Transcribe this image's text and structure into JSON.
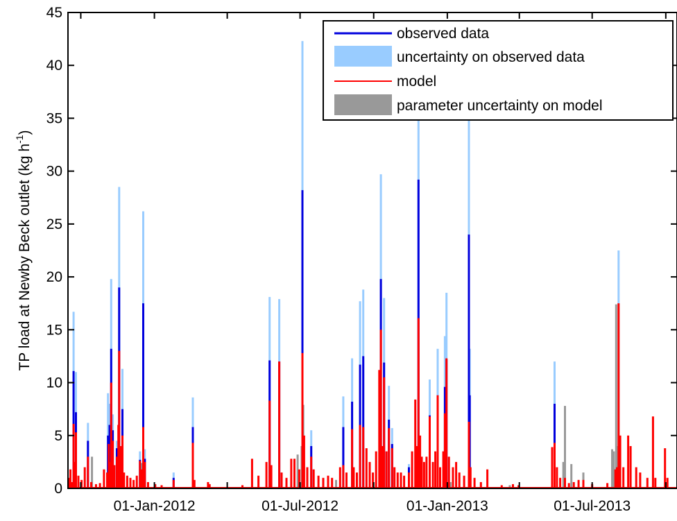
{
  "chart_data": {
    "type": "bar",
    "title": "",
    "ylabel": "TP load at Newby Beck outlet (kg h",
    "ylabel_sup": "-1",
    "ylabel_close": ")",
    "ylim": [
      0,
      45
    ],
    "yticks": [
      0,
      5,
      10,
      15,
      20,
      25,
      30,
      35,
      40,
      45
    ],
    "xlim": [
      "2011-09-15",
      "2013-10-15"
    ],
    "xticks": [
      {
        "date": "2011-10-01",
        "label": ""
      },
      {
        "date": "2012-01-01",
        "label": "01-Jan-2012"
      },
      {
        "date": "2012-04-01",
        "label": ""
      },
      {
        "date": "2012-07-01",
        "label": "01-Jul-2012"
      },
      {
        "date": "2012-10-01",
        "label": ""
      },
      {
        "date": "2013-01-01",
        "label": "01-Jan-2013"
      },
      {
        "date": "2013-04-01",
        "label": ""
      },
      {
        "date": "2013-07-01",
        "label": "01-Jul-2013"
      },
      {
        "date": "2013-10-01",
        "label": ""
      }
    ],
    "grid": false,
    "legend_position": "top-right",
    "colors": {
      "observed": "#0000dd",
      "observed_uncertainty": "#99ccff",
      "model": "#ff0000",
      "model_uncertainty": "#999999"
    },
    "series": [
      {
        "name": "observed data",
        "style": "line",
        "color": "#0000dd",
        "points": [
          [
            "2011-09-22",
            11.1
          ],
          [
            "2011-09-25",
            7.2
          ],
          [
            "2011-10-10",
            4.5
          ],
          [
            "2011-11-04",
            5.0
          ],
          [
            "2011-11-06",
            6.0
          ],
          [
            "2011-11-08",
            13.2
          ],
          [
            "2011-11-10",
            5.5
          ],
          [
            "2011-11-15",
            3.8
          ],
          [
            "2011-11-18",
            19.0
          ],
          [
            "2011-11-22",
            7.5
          ],
          [
            "2011-12-14",
            2.7
          ],
          [
            "2011-12-18",
            17.5
          ],
          [
            "2011-12-20",
            2.8
          ],
          [
            "2012-01-25",
            1.0
          ],
          [
            "2012-02-18",
            5.8
          ],
          [
            "2012-05-24",
            12.1
          ],
          [
            "2012-06-05",
            12.0
          ],
          [
            "2012-07-04",
            28.2
          ],
          [
            "2012-07-15",
            4.0
          ],
          [
            "2012-08-24",
            5.8
          ],
          [
            "2012-09-04",
            8.2
          ],
          [
            "2012-09-14",
            11.7
          ],
          [
            "2012-09-18",
            12.5
          ],
          [
            "2012-10-10",
            19.8
          ],
          [
            "2012-10-14",
            11.9
          ],
          [
            "2012-10-20",
            6.5
          ],
          [
            "2012-10-24",
            4.2
          ],
          [
            "2012-11-14",
            2.0
          ],
          [
            "2012-11-26",
            29.2
          ],
          [
            "2012-12-10",
            6.9
          ],
          [
            "2012-12-20",
            8.8
          ],
          [
            "2012-12-29",
            9.6
          ],
          [
            "2012-12-31",
            12.2
          ],
          [
            "2013-01-28",
            24.0
          ],
          [
            "2013-01-29",
            8.8
          ],
          [
            "2013-05-15",
            8.0
          ]
        ]
      },
      {
        "name": "uncertainty on observed data",
        "style": "bar",
        "color": "#99ccff",
        "points": [
          [
            "2011-09-22",
            16.7
          ],
          [
            "2011-09-25",
            11.0
          ],
          [
            "2011-10-10",
            6.2
          ],
          [
            "2011-11-04",
            9.0
          ],
          [
            "2011-11-06",
            8.0
          ],
          [
            "2011-11-08",
            19.8
          ],
          [
            "2011-11-10",
            7.0
          ],
          [
            "2011-11-15",
            4.5
          ],
          [
            "2011-11-18",
            28.5
          ],
          [
            "2011-11-22",
            11.3
          ],
          [
            "2011-12-14",
            3.5
          ],
          [
            "2011-12-18",
            26.2
          ],
          [
            "2011-12-20",
            3.7
          ],
          [
            "2012-01-25",
            1.5
          ],
          [
            "2012-02-18",
            8.6
          ],
          [
            "2012-05-24",
            18.1
          ],
          [
            "2012-06-05",
            17.9
          ],
          [
            "2012-07-04",
            42.3
          ],
          [
            "2012-07-15",
            5.5
          ],
          [
            "2012-08-24",
            8.7
          ],
          [
            "2012-09-04",
            12.3
          ],
          [
            "2012-09-14",
            17.7
          ],
          [
            "2012-09-18",
            18.8
          ],
          [
            "2012-10-10",
            29.7
          ],
          [
            "2012-10-14",
            18.0
          ],
          [
            "2012-10-20",
            9.7
          ],
          [
            "2012-10-24",
            5.7
          ],
          [
            "2012-11-14",
            2.3
          ],
          [
            "2012-11-26",
            40.0
          ],
          [
            "2012-12-10",
            10.3
          ],
          [
            "2012-12-20",
            13.2
          ],
          [
            "2012-12-29",
            14.4
          ],
          [
            "2012-12-31",
            18.5
          ],
          [
            "2013-01-28",
            40.0
          ],
          [
            "2013-01-29",
            13.2
          ],
          [
            "2013-05-15",
            12.0
          ],
          [
            "2013-08-03",
            22.5
          ]
        ]
      },
      {
        "name": "model",
        "style": "line",
        "color": "#ff0000",
        "points": [
          [
            "2011-09-16",
            1.0
          ],
          [
            "2011-09-18",
            1.8
          ],
          [
            "2011-09-20",
            0.6
          ],
          [
            "2011-09-22",
            6.1
          ],
          [
            "2011-09-24",
            2.5
          ],
          [
            "2011-09-25",
            5.3
          ],
          [
            "2011-09-28",
            1.2
          ],
          [
            "2011-10-02",
            0.8
          ],
          [
            "2011-10-06",
            2.0
          ],
          [
            "2011-10-10",
            3.0
          ],
          [
            "2011-10-14",
            0.6
          ],
          [
            "2011-10-20",
            0.4
          ],
          [
            "2011-10-25",
            0.5
          ],
          [
            "2011-10-30",
            1.8
          ],
          [
            "2011-11-03",
            1.5
          ],
          [
            "2011-11-05",
            4.2
          ],
          [
            "2011-11-07",
            2.5
          ],
          [
            "2011-11-08",
            10.0
          ],
          [
            "2011-11-10",
            4.5
          ],
          [
            "2011-11-12",
            2.2
          ],
          [
            "2011-11-15",
            3.0
          ],
          [
            "2011-11-17",
            6.0
          ],
          [
            "2011-11-18",
            13.0
          ],
          [
            "2011-11-20",
            4.0
          ],
          [
            "2011-11-22",
            5.0
          ],
          [
            "2011-11-24",
            1.5
          ],
          [
            "2011-11-28",
            1.2
          ],
          [
            "2011-12-02",
            1.0
          ],
          [
            "2011-12-06",
            0.8
          ],
          [
            "2011-12-10",
            1.2
          ],
          [
            "2011-12-14",
            2.6
          ],
          [
            "2011-12-16",
            1.8
          ],
          [
            "2011-12-18",
            5.8
          ],
          [
            "2011-12-20",
            2.5
          ],
          [
            "2011-12-24",
            0.6
          ],
          [
            "2012-01-02",
            0.4
          ],
          [
            "2012-01-10",
            0.3
          ],
          [
            "2012-01-25",
            0.8
          ],
          [
            "2012-02-18",
            4.3
          ],
          [
            "2012-02-20",
            0.8
          ],
          [
            "2012-03-08",
            0.6
          ],
          [
            "2012-03-10",
            0.4
          ],
          [
            "2012-04-20",
            0.3
          ],
          [
            "2012-05-02",
            2.8
          ],
          [
            "2012-05-10",
            1.2
          ],
          [
            "2012-05-20",
            2.5
          ],
          [
            "2012-05-24",
            8.3
          ],
          [
            "2012-05-26",
            2.2
          ],
          [
            "2012-06-05",
            12.0
          ],
          [
            "2012-06-08",
            1.5
          ],
          [
            "2012-06-14",
            1.0
          ],
          [
            "2012-06-20",
            2.8
          ],
          [
            "2012-06-24",
            2.8
          ],
          [
            "2012-06-30",
            1.8
          ],
          [
            "2012-07-04",
            12.8
          ],
          [
            "2012-07-06",
            5.0
          ],
          [
            "2012-07-10",
            2.0
          ],
          [
            "2012-07-15",
            3.0
          ],
          [
            "2012-07-18",
            1.8
          ],
          [
            "2012-07-24",
            1.2
          ],
          [
            "2012-07-30",
            1.0
          ],
          [
            "2012-08-05",
            1.2
          ],
          [
            "2012-08-10",
            1.0
          ],
          [
            "2012-08-20",
            2.0
          ],
          [
            "2012-08-24",
            2.2
          ],
          [
            "2012-08-28",
            1.5
          ],
          [
            "2012-09-04",
            5.6
          ],
          [
            "2012-09-06",
            2.0
          ],
          [
            "2012-09-10",
            1.5
          ],
          [
            "2012-09-14",
            6.0
          ],
          [
            "2012-09-18",
            5.8
          ],
          [
            "2012-09-22",
            3.8
          ],
          [
            "2012-09-26",
            2.5
          ],
          [
            "2012-09-30",
            1.5
          ],
          [
            "2012-10-04",
            3.5
          ],
          [
            "2012-10-08",
            11.2
          ],
          [
            "2012-10-10",
            15.0
          ],
          [
            "2012-10-12",
            4.0
          ],
          [
            "2012-10-14",
            10.5
          ],
          [
            "2012-10-17",
            3.5
          ],
          [
            "2012-10-20",
            5.7
          ],
          [
            "2012-10-24",
            3.8
          ],
          [
            "2012-10-27",
            2.0
          ],
          [
            "2012-10-31",
            1.5
          ],
          [
            "2012-11-04",
            1.5
          ],
          [
            "2012-11-08",
            1.2
          ],
          [
            "2012-11-14",
            1.5
          ],
          [
            "2012-11-18",
            3.5
          ],
          [
            "2012-11-22",
            8.4
          ],
          [
            "2012-11-24",
            4.0
          ],
          [
            "2012-11-26",
            16.1
          ],
          [
            "2012-11-28",
            5.0
          ],
          [
            "2012-11-30",
            3.0
          ],
          [
            "2012-12-03",
            2.5
          ],
          [
            "2012-12-06",
            3.0
          ],
          [
            "2012-12-10",
            6.8
          ],
          [
            "2012-12-14",
            2.5
          ],
          [
            "2012-12-17",
            3.5
          ],
          [
            "2012-12-20",
            8.8
          ],
          [
            "2012-12-23",
            2.0
          ],
          [
            "2012-12-27",
            3.5
          ],
          [
            "2012-12-29",
            7.1
          ],
          [
            "2012-12-31",
            12.3
          ],
          [
            "2013-01-03",
            3.0
          ],
          [
            "2013-01-08",
            2.0
          ],
          [
            "2013-01-12",
            2.5
          ],
          [
            "2013-01-16",
            1.5
          ],
          [
            "2013-01-22",
            1.2
          ],
          [
            "2013-01-28",
            6.3
          ],
          [
            "2013-01-30",
            2.0
          ],
          [
            "2013-02-04",
            1.0
          ],
          [
            "2013-02-12",
            0.6
          ],
          [
            "2013-02-20",
            1.8
          ],
          [
            "2013-03-10",
            0.3
          ],
          [
            "2013-03-24",
            0.4
          ],
          [
            "2013-03-31",
            0.3
          ],
          [
            "2013-05-12",
            3.9
          ],
          [
            "2013-05-15",
            4.3
          ],
          [
            "2013-05-18",
            2.0
          ],
          [
            "2013-05-22",
            1.0
          ],
          [
            "2013-05-28",
            1.0
          ],
          [
            "2013-06-02",
            0.5
          ],
          [
            "2013-06-08",
            0.6
          ],
          [
            "2013-06-14",
            0.8
          ],
          [
            "2013-06-20",
            0.8
          ],
          [
            "2013-07-01",
            0.4
          ],
          [
            "2013-07-20",
            0.5
          ],
          [
            "2013-07-30",
            1.8
          ],
          [
            "2013-08-01",
            2.0
          ],
          [
            "2013-08-03",
            17.5
          ],
          [
            "2013-08-05",
            5.0
          ],
          [
            "2013-08-09",
            2.0
          ],
          [
            "2013-08-15",
            5.0
          ],
          [
            "2013-08-18",
            4.0
          ],
          [
            "2013-08-25",
            2.0
          ],
          [
            "2013-08-30",
            1.5
          ],
          [
            "2013-09-08",
            1.0
          ],
          [
            "2013-09-15",
            6.8
          ],
          [
            "2013-09-18",
            1.0
          ],
          [
            "2013-09-30",
            3.8
          ],
          [
            "2013-10-03",
            1.0
          ]
        ]
      },
      {
        "name": "parameter uncertainty on model",
        "style": "bar",
        "color": "#999999",
        "points": [
          [
            "2011-10-15",
            3.0
          ],
          [
            "2011-12-16",
            2.4
          ],
          [
            "2012-06-28",
            3.2
          ],
          [
            "2012-07-03",
            4.0
          ],
          [
            "2012-07-05",
            7.9
          ],
          [
            "2012-08-15",
            0.8
          ],
          [
            "2013-01-05",
            0.6
          ],
          [
            "2013-03-20",
            0.3
          ],
          [
            "2013-05-26",
            2.5
          ],
          [
            "2013-05-28",
            7.8
          ],
          [
            "2013-06-05",
            2.3
          ],
          [
            "2013-06-20",
            1.5
          ],
          [
            "2013-07-26",
            3.7
          ],
          [
            "2013-07-28",
            3.5
          ],
          [
            "2013-07-31",
            17.4
          ],
          [
            "2013-08-02",
            4.0
          ],
          [
            "2013-08-04",
            3.0
          ]
        ]
      }
    ]
  }
}
